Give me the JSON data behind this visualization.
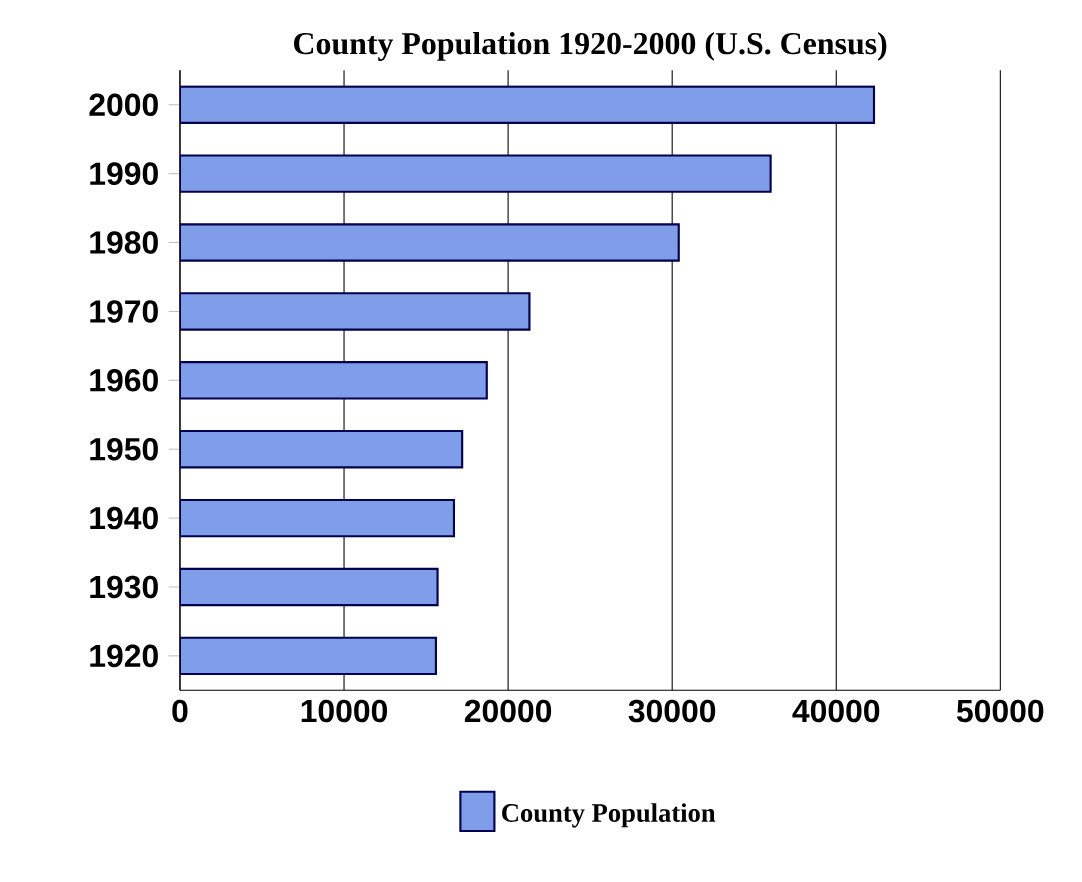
{
  "chart_data": {
    "type": "bar",
    "orientation": "horizontal",
    "title": "County Population 1920-2000 (U.S. Census)",
    "categories": [
      "2000",
      "1990",
      "1980",
      "1970",
      "1960",
      "1950",
      "1940",
      "1930",
      "1920"
    ],
    "series": [
      {
        "name": "County Population",
        "color": "#7f9de8",
        "values": [
          42300,
          36000,
          30400,
          21300,
          18700,
          17200,
          16700,
          15700,
          15600
        ]
      }
    ],
    "xlim": [
      0,
      50000
    ],
    "xticks": [
      0,
      10000,
      20000,
      30000,
      40000,
      50000
    ],
    "grid": "x",
    "legend": "bottom"
  }
}
